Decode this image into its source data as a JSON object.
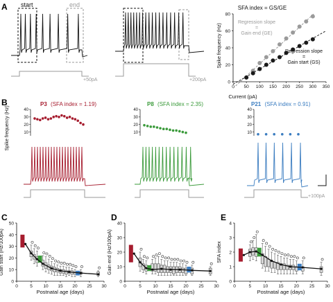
{
  "panel_letters": {
    "a": "A",
    "b": "B",
    "c": "C",
    "d": "D",
    "e": "E"
  },
  "panel_a": {
    "start_label": "start",
    "end_label": "end",
    "step1_label": "+50pA",
    "step2_label": "+200pA",
    "plot": {
      "title": "SFA index = GS/GE",
      "ylabel": "Spike frequency (Hz)",
      "xlabel": "Current (pA)",
      "annot_gray_1": "Regression slope",
      "annot_gray_2": "=",
      "annot_gray_3": "Gain end (GE)",
      "annot_black_1": "Regression slope",
      "annot_black_2": "=",
      "annot_black_3": "Gain start (GS)"
    }
  },
  "panel_b": {
    "ylabel": "Spike frequency (Hz)",
    "p3_label": "P3",
    "p3_sfa": "(SFA index = 1.19)",
    "p8_label": "P8",
    "p8_sfa": "(SFA index = 2.35)",
    "p21_label": "P21",
    "p21_sfa": "(SFA index = 0.91)",
    "step_label": "+100pA"
  },
  "colors": {
    "p3": "#a61c2e",
    "p8": "#3a9a3a",
    "p21": "#3a7cc0",
    "gray": "#9a9a9a",
    "dark": "#1a1a1a"
  },
  "chart_data": [
    {
      "id": "A_right",
      "type": "scatter",
      "title": "SFA index = GS/GE",
      "xlabel": "Current (pA)",
      "ylabel": "Spike frequency (Hz)",
      "xlim": [
        0,
        350
      ],
      "ylim": [
        0,
        80
      ],
      "xticks": [
        0,
        50,
        100,
        150,
        200,
        250,
        300,
        350
      ],
      "yticks": [
        0,
        20,
        40,
        60,
        80
      ],
      "series": [
        {
          "name": "Gain end (GE)",
          "color": "gray",
          "x": [
            50,
            75,
            100,
            125,
            150,
            175,
            200,
            225,
            250,
            275,
            300
          ],
          "y": [
            5,
            13,
            22,
            29,
            36,
            44,
            51,
            58,
            65,
            71,
            77
          ]
        },
        {
          "name": "Gain start (GS)",
          "color": "dark",
          "x": [
            50,
            75,
            100,
            125,
            150,
            175,
            200,
            225,
            250,
            275,
            300
          ],
          "y": [
            5,
            10,
            15,
            20,
            25,
            29,
            34,
            38,
            42,
            46,
            50
          ]
        }
      ]
    },
    {
      "id": "B_insets",
      "type": "scatter",
      "yticks": [
        10,
        20,
        30,
        40
      ],
      "ylim": [
        5,
        40
      ],
      "series": [
        {
          "name": "P3",
          "color": "p3",
          "values": [
            28,
            27,
            26,
            28,
            29,
            27,
            28,
            30,
            31,
            30,
            32,
            31,
            29,
            30,
            28,
            27,
            25,
            22,
            20
          ]
        },
        {
          "name": "P8",
          "color": "p8",
          "values": [
            19,
            18,
            17,
            17,
            16,
            15,
            14,
            14,
            13,
            12,
            12,
            11,
            10,
            9
          ]
        },
        {
          "name": "P21",
          "color": "p21",
          "values": [
            7,
            7,
            7,
            7,
            7,
            7
          ]
        }
      ]
    },
    {
      "id": "C",
      "type": "box",
      "ylabel": "Gain start (Hz/100pA)",
      "xlabel": "Postnatal age (days)",
      "xlim": [
        0,
        30
      ],
      "ylim": [
        0,
        50
      ],
      "xticks": [
        0,
        5,
        10,
        15,
        20,
        25,
        30
      ],
      "yticks": [
        0,
        10,
        20,
        30,
        40,
        50
      ],
      "fit": [
        [
          3,
          32
        ],
        [
          5,
          24
        ],
        [
          7,
          19
        ],
        [
          9,
          15
        ],
        [
          12,
          11
        ],
        [
          15,
          9
        ],
        [
          18,
          8
        ],
        [
          22,
          7
        ],
        [
          28,
          6
        ]
      ]
    },
    {
      "id": "D",
      "type": "box",
      "ylabel": "Gain end (Hz/100pA)",
      "xlabel": "Postnatal age (days)",
      "xlim": [
        0,
        30
      ],
      "ylim": [
        0,
        40
      ],
      "xticks": [
        0,
        5,
        10,
        15,
        20,
        25,
        30
      ],
      "yticks": [
        0,
        10,
        20,
        30,
        40
      ],
      "fit": [
        [
          3,
          19
        ],
        [
          5,
          13
        ],
        [
          7,
          9
        ],
        [
          9,
          8
        ],
        [
          12,
          8.5
        ],
        [
          15,
          8
        ],
        [
          18,
          8
        ],
        [
          22,
          7.5
        ],
        [
          28,
          7
        ]
      ]
    },
    {
      "id": "E",
      "type": "box",
      "ylabel": "SFA index",
      "xlabel": "Postnatal age (days)",
      "xlim": [
        0,
        30
      ],
      "ylim": [
        0,
        4
      ],
      "xticks": [
        0,
        5,
        10,
        15,
        20,
        25,
        30
      ],
      "yticks": [
        0,
        1,
        2,
        3,
        4
      ],
      "fit": [
        [
          3,
          1.8
        ],
        [
          5,
          2.0
        ],
        [
          7,
          2.05
        ],
        [
          9,
          1.8
        ],
        [
          12,
          1.4
        ],
        [
          15,
          1.15
        ],
        [
          18,
          1.0
        ],
        [
          22,
          0.95
        ],
        [
          28,
          0.85
        ]
      ]
    }
  ],
  "box_panels": {
    "C": {
      "highlights": [
        {
          "day": 2,
          "lo": 29,
          "hi": 40,
          "color": "p3"
        },
        {
          "day": 8,
          "lo": 16,
          "hi": 22,
          "color": "p8"
        },
        {
          "day": 21,
          "lo": 5,
          "hi": 9,
          "color": "p21"
        }
      ],
      "boxes": [
        [
          5,
          21,
          26,
          18,
          31
        ],
        [
          6,
          19,
          23,
          15,
          28
        ],
        [
          7,
          16,
          21,
          13,
          26
        ],
        [
          9,
          13,
          18,
          10,
          22
        ],
        [
          10,
          11,
          16,
          8,
          21
        ],
        [
          11,
          10,
          14,
          7,
          19
        ],
        [
          12,
          9,
          13,
          6,
          17
        ],
        [
          13,
          8,
          12,
          5,
          15
        ],
        [
          14,
          8,
          11,
          5,
          14
        ],
        [
          15,
          7,
          10,
          5,
          13
        ],
        [
          16,
          7,
          10,
          5,
          13
        ],
        [
          17,
          6,
          9,
          4,
          12
        ],
        [
          18,
          7,
          9,
          5,
          12
        ],
        [
          19,
          6,
          9,
          4,
          11
        ],
        [
          20,
          6,
          8,
          4,
          10
        ],
        [
          22,
          6,
          8,
          4,
          10
        ],
        [
          28,
          5,
          8,
          4,
          9
        ]
      ]
    },
    "D": {
      "highlights": [
        {
          "day": 2,
          "lo": 13,
          "hi": 25,
          "color": "p3"
        },
        {
          "day": 8,
          "lo": 7,
          "hi": 11,
          "color": "p8"
        },
        {
          "day": 21,
          "lo": 6,
          "hi": 10,
          "color": "p21"
        }
      ],
      "boxes": [
        [
          5,
          10,
          16,
          7,
          20
        ],
        [
          6,
          8,
          12,
          6,
          15
        ],
        [
          7,
          7,
          11,
          5,
          14
        ],
        [
          9,
          7,
          12,
          5,
          15
        ],
        [
          10,
          7,
          12,
          5,
          16
        ],
        [
          11,
          6,
          12,
          4,
          17
        ],
        [
          12,
          6,
          11,
          4,
          15
        ],
        [
          13,
          6,
          11,
          4,
          14
        ],
        [
          14,
          6,
          10,
          4,
          14
        ],
        [
          15,
          6,
          10,
          4,
          13
        ],
        [
          16,
          5,
          10,
          4,
          13
        ],
        [
          17,
          6,
          10,
          4,
          13
        ],
        [
          18,
          6,
          10,
          4,
          12
        ],
        [
          19,
          6,
          9,
          4,
          12
        ],
        [
          20,
          5,
          9,
          4,
          11
        ],
        [
          22,
          5,
          9,
          4,
          11
        ],
        [
          28,
          5,
          9,
          4,
          10
        ]
      ]
    },
    "E": {
      "highlights": [
        {
          "day": 2,
          "lo": 1.35,
          "hi": 2.25,
          "color": "p3"
        },
        {
          "day": 8,
          "lo": 1.7,
          "hi": 2.3,
          "color": "p8"
        },
        {
          "day": 21,
          "lo": 0.75,
          "hi": 1.2,
          "color": "p21"
        }
      ],
      "boxes": [
        [
          5,
          1.7,
          2.2,
          1.4,
          2.5
        ],
        [
          6,
          1.8,
          2.3,
          1.5,
          2.8
        ],
        [
          7,
          1.7,
          2.3,
          1.4,
          3.2
        ],
        [
          9,
          1.2,
          1.9,
          0.9,
          2.6
        ],
        [
          10,
          1.0,
          1.7,
          0.7,
          2.4
        ],
        [
          11,
          1.0,
          1.5,
          0.7,
          2.2
        ],
        [
          12,
          0.9,
          1.4,
          0.6,
          2.0
        ],
        [
          13,
          0.9,
          1.3,
          0.6,
          1.9
        ],
        [
          14,
          0.8,
          1.3,
          0.5,
          1.8
        ],
        [
          15,
          0.8,
          1.2,
          0.5,
          1.7
        ],
        [
          16,
          0.8,
          1.2,
          0.5,
          1.6
        ],
        [
          17,
          0.8,
          1.1,
          0.5,
          1.6
        ],
        [
          18,
          0.8,
          1.1,
          0.5,
          1.5
        ],
        [
          19,
          0.8,
          1.1,
          0.5,
          1.5
        ],
        [
          20,
          0.7,
          1.0,
          0.5,
          1.4
        ],
        [
          22,
          0.7,
          1.0,
          0.5,
          1.4
        ],
        [
          28,
          0.6,
          1.0,
          0.4,
          1.3
        ]
      ]
    }
  }
}
